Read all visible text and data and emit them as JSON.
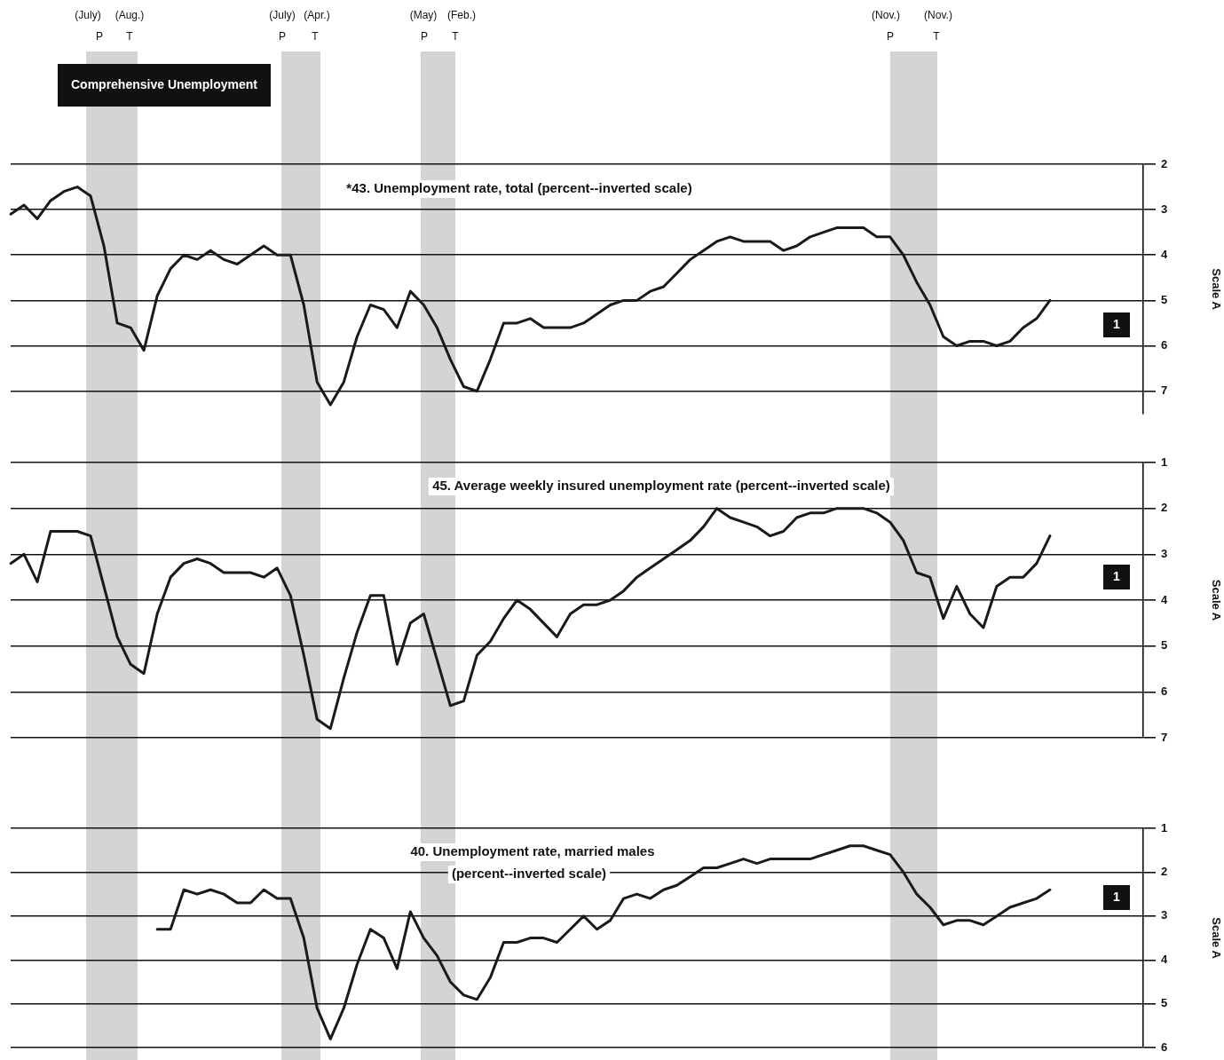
{
  "chart_data": [
    {
      "type": "line",
      "title": "*43. Unemployment rate, total (percent--inverted scale)",
      "ylabel": "Scale A",
      "categories": [
        null,
        null,
        null,
        null,
        null,
        null,
        null,
        null,
        null,
        null,
        null,
        null,
        null,
        null,
        null,
        null,
        null,
        null,
        null,
        null,
        null,
        null,
        null,
        null,
        null,
        null,
        null,
        null,
        null,
        null,
        null,
        null,
        null,
        null,
        null,
        null,
        null,
        null,
        null,
        null,
        null,
        null,
        null,
        null,
        null,
        null,
        null,
        null,
        null,
        null,
        null,
        null,
        null,
        null,
        null,
        null,
        null,
        null,
        null,
        null,
        null,
        null,
        null,
        null,
        null,
        null,
        null,
        null,
        null,
        null,
        null,
        null,
        null,
        null,
        null,
        null,
        null,
        null,
        null,
        null,
        null,
        null,
        null,
        null,
        null,
        null
      ],
      "ylim": [
        7.5,
        2
      ],
      "yticks": [
        2,
        3,
        4,
        5,
        6,
        7
      ],
      "grid": "y",
      "tick_labels": "y",
      "series": [
        {
          "color": "#1a1a1a",
          "values": [
            3.1,
            2.9,
            3.2,
            2.8,
            2.6,
            2.5,
            2.7,
            3.8,
            5.5,
            5.6,
            6.1,
            4.9,
            4.3,
            4.0,
            4.1,
            3.9,
            4.1,
            4.2,
            4.0,
            3.8,
            4.0,
            4.0,
            5.1,
            6.8,
            7.3,
            6.8,
            5.8,
            5.1,
            5.2,
            5.6,
            4.8,
            5.1,
            5.6,
            6.3,
            6.9,
            7.0,
            6.3,
            5.5,
            5.5,
            5.4,
            5.6,
            5.6,
            5.6,
            5.5,
            5.3,
            5.1,
            5.0,
            5.0,
            4.8,
            4.7,
            4.4,
            4.1,
            3.9,
            3.7,
            3.6,
            3.7,
            3.7,
            3.7,
            3.9,
            3.8,
            3.6,
            3.5,
            3.4,
            3.4,
            3.4,
            3.6,
            3.6,
            4.0,
            4.6,
            5.1,
            5.8,
            6.0,
            5.9,
            5.9,
            6.0,
            5.9,
            5.6,
            5.4,
            5.0,
            null,
            null,
            null,
            null,
            null,
            null,
            null
          ]
        }
      ],
      "annotations": [
        "Comprehensive Unemployment",
        "(July)",
        "P",
        "(Aug.)",
        "T",
        "(July)",
        "P",
        "(Apr.)",
        "T",
        "(May)",
        "P",
        "(Feb.)",
        "T",
        "(Nov.)",
        "P",
        "(Nov.)",
        "T",
        "1"
      ]
    },
    {
      "type": "line",
      "title": "45. Average weekly insured unemployment rate (percent--inverted scale)",
      "ylabel": "Scale A",
      "categories": [
        null,
        null,
        null,
        null,
        null,
        null,
        null,
        null,
        null,
        null,
        null,
        null,
        null,
        null,
        null,
        null,
        null,
        null,
        null,
        null,
        null,
        null,
        null,
        null,
        null,
        null,
        null,
        null,
        null,
        null,
        null,
        null,
        null,
        null,
        null,
        null,
        null,
        null,
        null,
        null,
        null,
        null,
        null,
        null,
        null,
        null,
        null,
        null,
        null,
        null,
        null,
        null,
        null,
        null,
        null,
        null,
        null,
        null,
        null,
        null,
        null,
        null,
        null,
        null,
        null,
        null,
        null,
        null,
        null,
        null,
        null,
        null,
        null,
        null,
        null,
        null,
        null,
        null,
        null,
        null,
        null,
        null,
        null,
        null,
        null,
        null
      ],
      "ylim": [
        7,
        1
      ],
      "yticks": [
        1,
        2,
        3,
        4,
        5,
        6,
        7
      ],
      "grid": "y",
      "tick_labels": "y",
      "series": [
        {
          "color": "#1a1a1a",
          "values": [
            3.2,
            3.0,
            3.6,
            2.5,
            2.5,
            2.5,
            2.6,
            3.7,
            4.8,
            5.4,
            5.6,
            4.3,
            3.5,
            3.2,
            3.1,
            3.2,
            3.4,
            3.4,
            3.4,
            3.5,
            3.3,
            3.9,
            5.2,
            6.6,
            6.8,
            5.7,
            4.7,
            3.9,
            3.9,
            5.4,
            4.5,
            4.3,
            5.3,
            6.3,
            6.2,
            5.2,
            4.9,
            4.4,
            4.0,
            4.2,
            4.5,
            4.8,
            4.3,
            4.1,
            4.1,
            4.0,
            3.8,
            3.5,
            3.3,
            3.1,
            2.9,
            2.7,
            2.4,
            2.0,
            2.2,
            2.3,
            2.4,
            2.6,
            2.5,
            2.2,
            2.1,
            2.1,
            2.0,
            2.0,
            2.0,
            2.1,
            2.3,
            2.7,
            3.4,
            3.5,
            4.4,
            3.7,
            4.3,
            4.6,
            3.7,
            3.5,
            3.5,
            3.2,
            2.6,
            null,
            null,
            null,
            null,
            null,
            null,
            null
          ]
        }
      ],
      "annotations": [
        "1"
      ]
    },
    {
      "type": "line",
      "title": "40. Unemployment rate, married males",
      "subtitle": "(percent--inverted scale)",
      "ylabel": "Scale A",
      "categories": [
        null,
        null,
        null,
        null,
        null,
        null,
        null,
        null,
        null,
        null,
        null,
        null,
        null,
        null,
        null,
        null,
        null,
        null,
        null,
        null,
        null,
        null,
        null,
        null,
        null,
        null,
        null,
        null,
        null,
        null,
        null,
        null,
        null,
        null,
        null,
        null,
        null,
        null,
        null,
        null,
        null,
        null,
        null,
        null,
        null,
        null,
        null,
        null,
        null,
        null,
        null,
        null,
        null,
        null,
        null,
        null,
        null,
        null,
        null,
        null,
        null,
        null,
        null,
        null,
        null,
        null,
        null,
        null,
        null,
        null,
        null,
        null,
        null,
        null,
        null,
        null,
        null,
        null,
        null,
        null,
        null,
        null,
        null,
        null,
        null,
        null
      ],
      "ylim": [
        6,
        1
      ],
      "yticks": [
        1,
        2,
        3,
        4,
        5,
        6
      ],
      "grid": "y",
      "tick_labels": "y",
      "series": [
        {
          "color": "#1a1a1a",
          "values": [
            null,
            null,
            null,
            null,
            null,
            null,
            null,
            null,
            null,
            null,
            null,
            3.3,
            3.3,
            2.4,
            2.5,
            2.4,
            2.5,
            2.7,
            2.7,
            2.4,
            2.6,
            2.6,
            3.5,
            5.1,
            5.8,
            5.1,
            4.1,
            3.3,
            3.5,
            4.2,
            2.9,
            3.5,
            3.9,
            4.5,
            4.8,
            4.9,
            4.4,
            3.6,
            3.6,
            3.5,
            3.5,
            3.6,
            3.3,
            3.0,
            3.3,
            3.1,
            2.6,
            2.5,
            2.6,
            2.4,
            2.3,
            2.1,
            1.9,
            1.9,
            1.8,
            1.7,
            1.8,
            1.7,
            1.7,
            1.7,
            1.7,
            1.6,
            1.5,
            1.4,
            1.4,
            1.5,
            1.6,
            2.0,
            2.5,
            2.8,
            3.2,
            3.1,
            3.1,
            3.2,
            3.0,
            2.8,
            2.7,
            2.6,
            2.4,
            null,
            null,
            null,
            null,
            null,
            null,
            null
          ]
        }
      ],
      "annotations": [
        "1"
      ]
    }
  ]
}
